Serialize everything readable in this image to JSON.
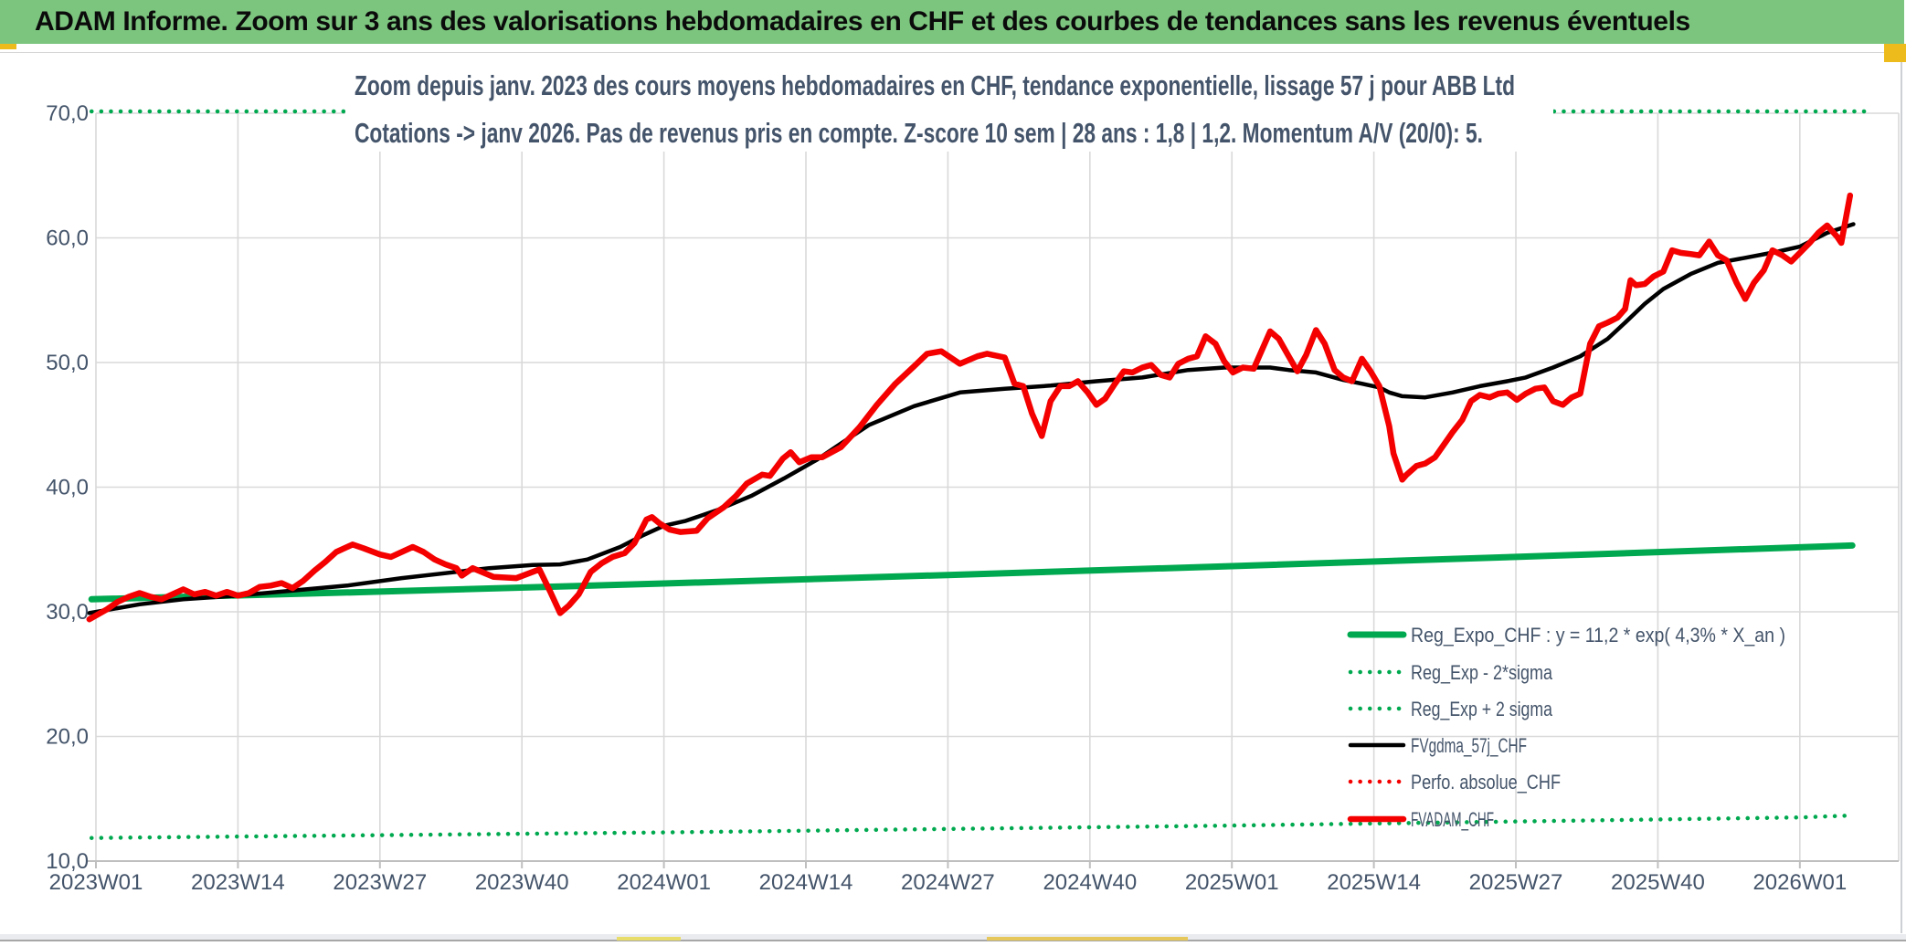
{
  "window": {
    "header_title": "ADAM Informe. Zoom sur 3 ans des valorisations hebdomadaires en CHF et des courbes de tendances sans les revenus éventuels",
    "colors": {
      "header_bg": "#7cc57e",
      "accent_gold": "#eebb1d",
      "accent_gold_soft": "#e8dc6a",
      "title_text": "#44546a",
      "grid": "#d9d9d9",
      "axis": "#bfbfbf",
      "series_green": "#00a94f",
      "series_red": "#f40000",
      "series_black": "#000000"
    }
  },
  "chart_data": {
    "type": "line",
    "title_line1": "Zoom depuis janv. 2023 des cours moyens hebdomadaires en CHF, tendance exponentielle, lissage 57 j pour ABB Ltd",
    "title_line2": "Cotations -> janv 2026. Pas de revenus pris en compte. Z-score 10 sem | 28 ans : 1,8 | 1,2. Momentum A/V (20/0): 5.",
    "x_tick_labels": [
      "2023W01",
      "2023W14",
      "2023W27",
      "2023W40",
      "2024W01",
      "2024W14",
      "2024W27",
      "2024W40",
      "2025W01",
      "2025W14",
      "2025W27",
      "2025W40",
      "2026W01"
    ],
    "y_tick_labels": [
      "10,0",
      "20,0",
      "30,0",
      "40,0",
      "50,0",
      "60,0",
      "70,0"
    ],
    "ylim": [
      10,
      70
    ],
    "grid": true,
    "legend_position": "inside-bottom-right",
    "x_encoding": "weeks since 2023W01 (fractional index, 13 weeks per tick)",
    "series": [
      {
        "name": "Reg_Expo_CHF : y = 11,2 * exp( 4,3% *  X_an )",
        "color": "#00a94f",
        "style": "solid",
        "width": 7,
        "points": [
          [
            -0.4,
            31.0
          ],
          [
            26,
            31.62
          ],
          [
            52,
            32.27
          ],
          [
            78,
            32.95
          ],
          [
            104,
            33.66
          ],
          [
            130,
            34.4
          ],
          [
            156,
            35.17
          ],
          [
            160.8,
            35.32
          ]
        ]
      },
      {
        "name": "Reg_Exp - 2*sigma",
        "color": "#00a94f",
        "style": "dotted",
        "width": 4.5,
        "points": [
          [
            -0.4,
            11.85
          ],
          [
            52,
            12.3
          ],
          [
            104,
            12.85
          ],
          [
            156,
            13.5
          ],
          [
            160.4,
            13.65
          ]
        ]
      },
      {
        "name": "Reg_Exp + 2 sigma",
        "color": "#00a94f",
        "style": "dotted",
        "width": 4.5,
        "clipped_at_top": true,
        "points": [
          [
            -0.4,
            70.15
          ],
          [
            162.7,
            70.15
          ]
        ]
      },
      {
        "name": "FVgdma_57j_CHF",
        "color": "#000000",
        "style": "solid",
        "width": 4.5,
        "points": [
          [
            -0.6,
            29.9
          ],
          [
            4,
            30.6
          ],
          [
            8,
            31.0
          ],
          [
            13,
            31.3
          ],
          [
            18,
            31.7
          ],
          [
            23,
            32.1
          ],
          [
            28,
            32.7
          ],
          [
            33,
            33.2
          ],
          [
            36,
            33.5
          ],
          [
            40,
            33.75
          ],
          [
            42.5,
            33.8
          ],
          [
            45,
            34.2
          ],
          [
            48,
            35.2
          ],
          [
            50,
            36.1
          ],
          [
            52,
            36.9
          ],
          [
            54,
            37.3
          ],
          [
            57,
            38.2
          ],
          [
            60,
            39.3
          ],
          [
            63,
            40.7
          ],
          [
            66,
            42.2
          ],
          [
            68.2,
            43.5
          ],
          [
            70.8,
            45.0
          ],
          [
            74.9,
            46.5
          ],
          [
            79.1,
            47.6
          ],
          [
            83.2,
            47.9
          ],
          [
            87.4,
            48.15
          ],
          [
            91.6,
            48.5
          ],
          [
            95.8,
            48.8
          ],
          [
            100,
            49.4
          ],
          [
            103.3,
            49.6
          ],
          [
            107.5,
            49.6
          ],
          [
            109.2,
            49.4
          ],
          [
            111.7,
            49.2
          ],
          [
            114.2,
            48.6
          ],
          [
            115.9,
            48.3
          ],
          [
            117.5,
            48.0
          ],
          [
            118.4,
            47.6
          ],
          [
            119.6,
            47.3
          ],
          [
            121.7,
            47.2
          ],
          [
            124.2,
            47.6
          ],
          [
            126.7,
            48.1
          ],
          [
            129.2,
            48.5
          ],
          [
            130.9,
            48.8
          ],
          [
            133.4,
            49.6
          ],
          [
            135.9,
            50.5
          ],
          [
            138.4,
            51.9
          ],
          [
            140,
            53.2
          ],
          [
            141.8,
            54.7
          ],
          [
            143.5,
            55.9
          ],
          [
            146,
            57.1
          ],
          [
            148.5,
            58.0
          ],
          [
            151,
            58.4
          ],
          [
            154,
            58.9
          ],
          [
            156,
            59.3
          ],
          [
            158.5,
            60.4
          ],
          [
            160.9,
            61.1
          ]
        ]
      },
      {
        "name": "Perfo. absolue_CHF",
        "color": "#f40000",
        "style": "dotted",
        "width": 4,
        "visible_in_plot": false,
        "points": []
      },
      {
        "name": "FVADAM_CHF",
        "color": "#f40000",
        "style": "solid",
        "width": 6.5,
        "points": [
          [
            -0.6,
            29.4
          ],
          [
            1,
            30.2
          ],
          [
            2,
            30.8
          ],
          [
            3,
            31.2
          ],
          [
            4,
            31.5
          ],
          [
            5,
            31.2
          ],
          [
            6,
            31.0
          ],
          [
            7,
            31.4
          ],
          [
            8,
            31.8
          ],
          [
            9,
            31.4
          ],
          [
            10,
            31.6
          ],
          [
            11,
            31.3
          ],
          [
            12,
            31.6
          ],
          [
            13,
            31.3
          ],
          [
            14,
            31.5
          ],
          [
            15,
            32.0
          ],
          [
            16,
            32.1
          ],
          [
            17,
            32.3
          ],
          [
            18,
            31.9
          ],
          [
            19,
            32.5
          ],
          [
            20,
            33.3
          ],
          [
            21,
            34.0
          ],
          [
            22,
            34.8
          ],
          [
            23.5,
            35.4
          ],
          [
            24.5,
            35.1
          ],
          [
            26,
            34.6
          ],
          [
            27,
            34.4
          ],
          [
            29,
            35.2
          ],
          [
            30,
            34.8
          ],
          [
            31,
            34.2
          ],
          [
            32,
            33.8
          ],
          [
            33,
            33.5
          ],
          [
            33.5,
            32.9
          ],
          [
            34.5,
            33.5
          ],
          [
            36.4,
            32.8
          ],
          [
            38.5,
            32.7
          ],
          [
            40.6,
            33.4
          ],
          [
            41.6,
            31.6
          ],
          [
            42.5,
            29.9
          ],
          [
            43.3,
            30.5
          ],
          [
            44.2,
            31.4
          ],
          [
            45.3,
            33.2
          ],
          [
            46.3,
            33.9
          ],
          [
            47.3,
            34.4
          ],
          [
            48.4,
            34.7
          ],
          [
            49.3,
            35.5
          ],
          [
            50.4,
            37.4
          ],
          [
            50.9,
            37.6
          ],
          [
            51.6,
            37.1
          ],
          [
            52.5,
            36.6
          ],
          [
            53.5,
            36.4
          ],
          [
            55,
            36.5
          ],
          [
            56,
            37.5
          ],
          [
            57.5,
            38.4
          ],
          [
            58.6,
            39.3
          ],
          [
            59.6,
            40.3
          ],
          [
            61,
            41.0
          ],
          [
            61.7,
            40.9
          ],
          [
            62.9,
            42.3
          ],
          [
            63.6,
            42.8
          ],
          [
            64.4,
            42.0
          ],
          [
            65.5,
            42.4
          ],
          [
            66.5,
            42.4
          ],
          [
            68.2,
            43.2
          ],
          [
            69.9,
            44.8
          ],
          [
            71.5,
            46.6
          ],
          [
            73.2,
            48.3
          ],
          [
            74.9,
            49.7
          ],
          [
            76.1,
            50.7
          ],
          [
            77.4,
            50.9
          ],
          [
            79.1,
            49.9
          ],
          [
            80.7,
            50.5
          ],
          [
            81.6,
            50.7
          ],
          [
            83.2,
            50.4
          ],
          [
            84.1,
            48.3
          ],
          [
            84.9,
            48.1
          ],
          [
            85.7,
            45.9
          ],
          [
            86.6,
            44.1
          ],
          [
            87.4,
            46.9
          ],
          [
            88.3,
            48.1
          ],
          [
            89.1,
            48.1
          ],
          [
            89.9,
            48.5
          ],
          [
            90.8,
            47.6
          ],
          [
            91.6,
            46.6
          ],
          [
            92.4,
            47.1
          ],
          [
            93.3,
            48.3
          ],
          [
            94.1,
            49.3
          ],
          [
            94.9,
            49.2
          ],
          [
            95.8,
            49.6
          ],
          [
            96.6,
            49.8
          ],
          [
            97.5,
            49.0
          ],
          [
            98.3,
            48.8
          ],
          [
            99.1,
            49.9
          ],
          [
            100,
            50.3
          ],
          [
            100.8,
            50.5
          ],
          [
            101.6,
            52.1
          ],
          [
            102.5,
            51.5
          ],
          [
            103.3,
            50.1
          ],
          [
            104.1,
            49.2
          ],
          [
            105,
            49.6
          ],
          [
            106,
            49.5
          ],
          [
            107.5,
            52.5
          ],
          [
            108.3,
            51.9
          ],
          [
            109.2,
            50.5
          ],
          [
            110,
            49.3
          ],
          [
            110.8,
            50.6
          ],
          [
            111.7,
            52.6
          ],
          [
            112.5,
            51.5
          ],
          [
            113.4,
            49.4
          ],
          [
            114.2,
            48.8
          ],
          [
            115,
            48.5
          ],
          [
            115.9,
            50.3
          ],
          [
            116.7,
            49.3
          ],
          [
            117.5,
            48.1
          ],
          [
            118.4,
            44.9
          ],
          [
            118.8,
            42.7
          ],
          [
            119.6,
            40.6
          ],
          [
            120,
            41.0
          ],
          [
            120.9,
            41.7
          ],
          [
            121.7,
            41.9
          ],
          [
            122.6,
            42.4
          ],
          [
            123.4,
            43.4
          ],
          [
            124.2,
            44.4
          ],
          [
            125.1,
            45.4
          ],
          [
            125.9,
            46.9
          ],
          [
            126.7,
            47.4
          ],
          [
            127.6,
            47.2
          ],
          [
            128.4,
            47.5
          ],
          [
            129.2,
            47.6
          ],
          [
            130.1,
            47.0
          ],
          [
            130.9,
            47.5
          ],
          [
            131.8,
            47.9
          ],
          [
            132.6,
            48.0
          ],
          [
            133.4,
            46.9
          ],
          [
            134.3,
            46.6
          ],
          [
            135.1,
            47.2
          ],
          [
            135.9,
            47.5
          ],
          [
            136.8,
            51.5
          ],
          [
            137.6,
            52.9
          ],
          [
            138.4,
            53.2
          ],
          [
            139.3,
            53.6
          ],
          [
            140,
            54.3
          ],
          [
            140.5,
            56.6
          ],
          [
            141,
            56.2
          ],
          [
            141.8,
            56.3
          ],
          [
            142.6,
            56.9
          ],
          [
            143.5,
            57.3
          ],
          [
            144.3,
            59.0
          ],
          [
            145.1,
            58.8
          ],
          [
            146,
            58.7
          ],
          [
            146.8,
            58.6
          ],
          [
            147.7,
            59.7
          ],
          [
            148.5,
            58.6
          ],
          [
            149.3,
            58.2
          ],
          [
            150.2,
            56.4
          ],
          [
            151,
            55.1
          ],
          [
            151.8,
            56.4
          ],
          [
            152.7,
            57.4
          ],
          [
            153.5,
            59.0
          ],
          [
            154.4,
            58.6
          ],
          [
            155.2,
            58.1
          ],
          [
            156,
            58.8
          ],
          [
            156.9,
            59.6
          ],
          [
            157.7,
            60.4
          ],
          [
            158.5,
            61.0
          ],
          [
            159.4,
            60.1
          ],
          [
            159.8,
            59.6
          ],
          [
            160.6,
            63.4
          ]
        ]
      }
    ]
  }
}
